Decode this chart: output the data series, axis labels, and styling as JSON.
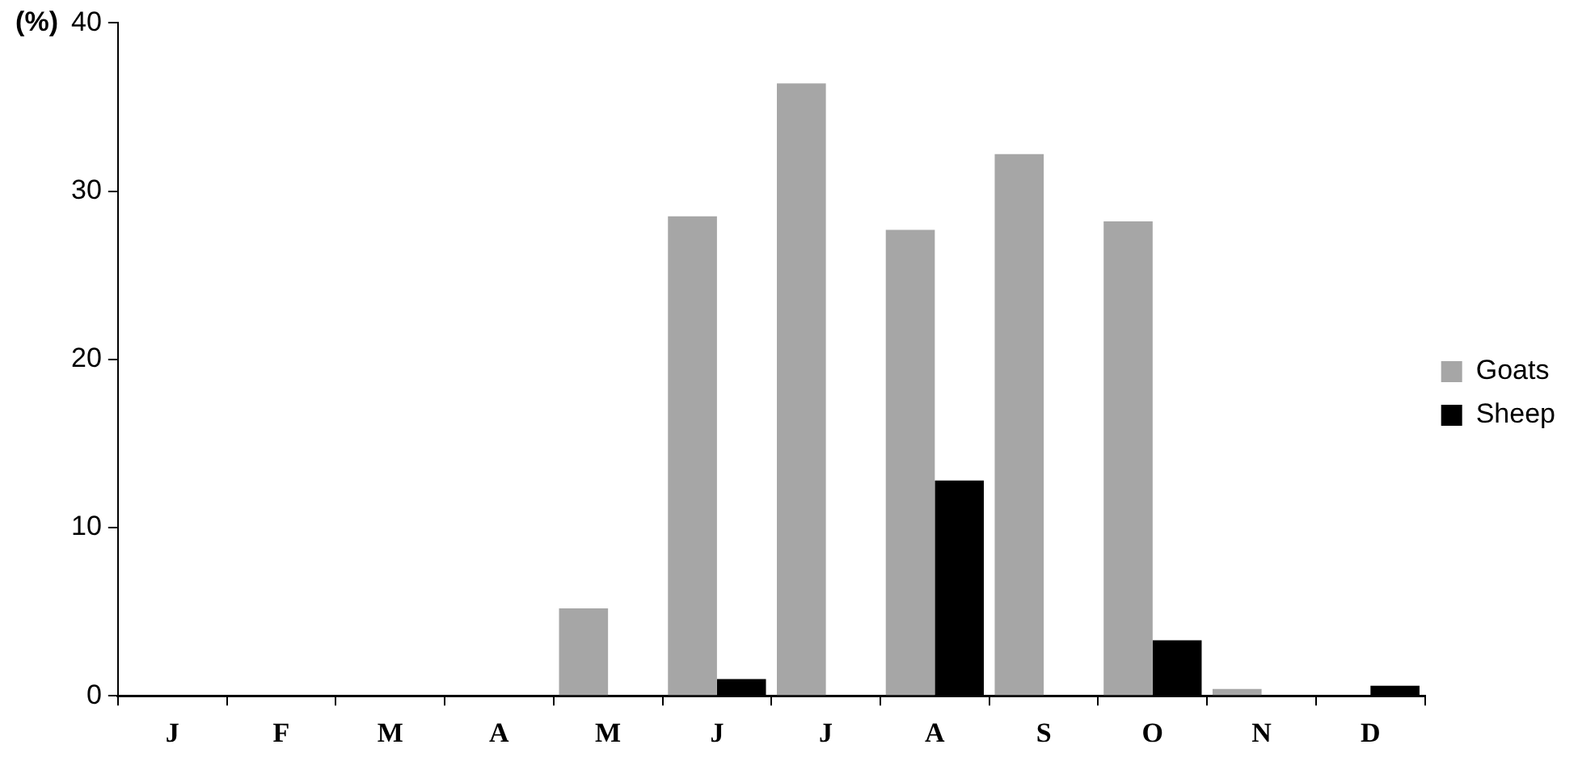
{
  "chart_data": {
    "type": "bar",
    "ylabel": "(%)",
    "categories": [
      "J",
      "F",
      "M",
      "A",
      "M",
      "J",
      "J",
      "A",
      "S",
      "O",
      "N",
      "D"
    ],
    "series": [
      {
        "name": "Goats",
        "color": "#a6a6a6",
        "values": [
          0,
          0,
          0,
          0,
          5.2,
          28.5,
          36.4,
          27.7,
          32.2,
          28.2,
          0.4,
          0
        ]
      },
      {
        "name": "Sheep",
        "color": "#000000",
        "values": [
          0,
          0,
          0,
          0,
          0,
          1.0,
          0,
          12.8,
          0,
          3.3,
          0,
          0.6
        ]
      }
    ],
    "ylim": [
      0,
      40
    ],
    "yticks": [
      0,
      10,
      20,
      30,
      40
    ],
    "grid": false,
    "legend": "right"
  }
}
